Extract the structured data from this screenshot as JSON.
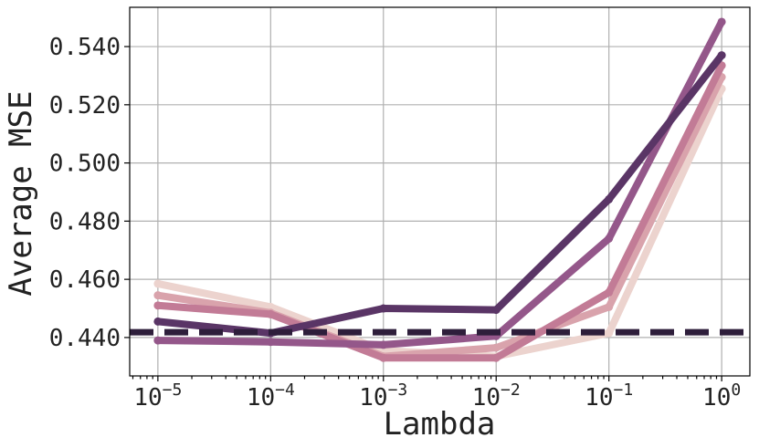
{
  "chart_data": {
    "type": "line",
    "xlabel": "Lambda",
    "ylabel": "Average MSE",
    "x_scale": "log10",
    "x": [
      1e-05,
      0.0001,
      0.001,
      0.01,
      0.1,
      1
    ],
    "x_tick_labels": [
      {
        "base": "10",
        "exp": "−5"
      },
      {
        "base": "10",
        "exp": "−4"
      },
      {
        "base": "10",
        "exp": "−3"
      },
      {
        "base": "10",
        "exp": "−2"
      },
      {
        "base": "10",
        "exp": "−1"
      },
      {
        "base": "10",
        "exp": "0"
      }
    ],
    "y_ticks": [
      0.44,
      0.46,
      0.48,
      0.5,
      0.52,
      0.54
    ],
    "y_tick_labels": [
      "0.440",
      "0.460",
      "0.480",
      "0.500",
      "0.520",
      "0.540"
    ],
    "ylim": [
      0.4268,
      0.5535
    ],
    "xlim_log10": [
      -5.25,
      0.25
    ],
    "grid": true,
    "series": [
      {
        "color": "#ecd3ce",
        "values": [
          0.4585,
          0.4505,
          0.4355,
          0.4335,
          0.4415,
          0.5255
        ]
      },
      {
        "color": "#d9a3ac",
        "values": [
          0.4545,
          0.4485,
          0.4335,
          0.4365,
          0.4505,
          0.5295
        ]
      },
      {
        "color": "#c27b96",
        "values": [
          0.451,
          0.448,
          0.433,
          0.433,
          0.4555,
          0.5335
        ]
      },
      {
        "color": "#94578a",
        "values": [
          0.439,
          0.4385,
          0.4375,
          0.4405,
          0.474,
          0.5485
        ]
      },
      {
        "color": "#5a3566",
        "values": [
          0.4455,
          0.4415,
          0.45,
          0.4495,
          0.4875,
          0.537
        ]
      }
    ],
    "reference_line": {
      "value": 0.4418,
      "color": "#2e1e3b",
      "style": "dashed"
    }
  }
}
